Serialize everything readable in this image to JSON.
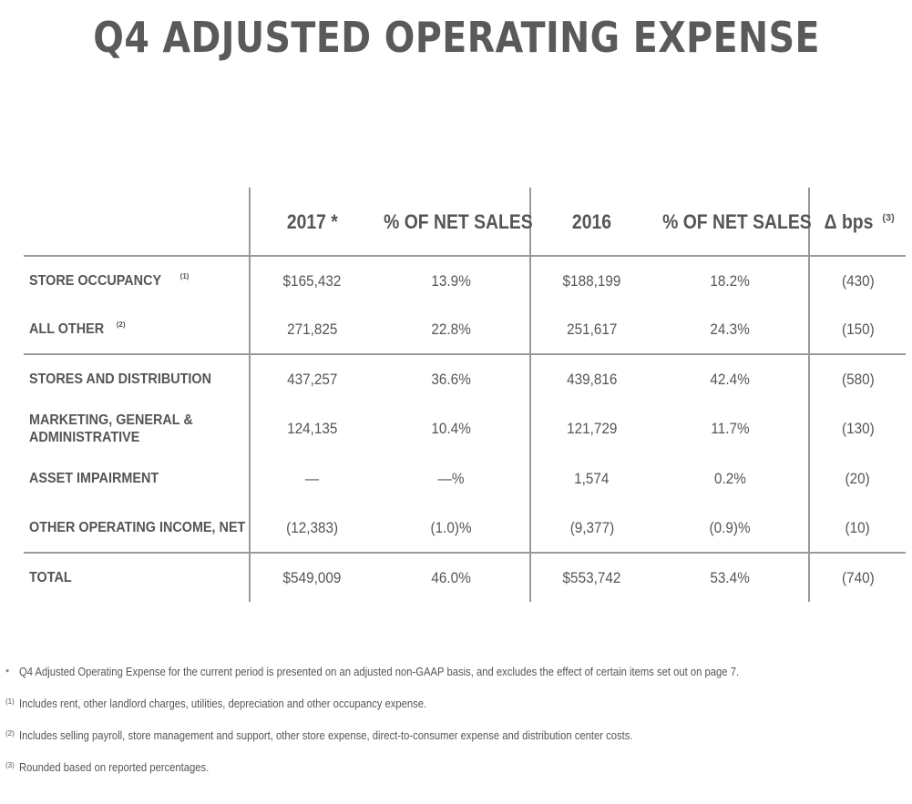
{
  "title": "Q4 ADJUSTED OPERATING EXPENSE",
  "table": {
    "headers": {
      "col1": "2017 *",
      "col2": "% OF NET SALES",
      "col3": "2016",
      "col4": "% OF NET SALES",
      "col5": "Δ bps",
      "col5_sup": "(3)"
    },
    "rows": [
      {
        "label": "STORE OCCUPANCY",
        "sup": "(1)",
        "v2017": "$165,432",
        "p2017": "13.9%",
        "v2016": "$188,199",
        "p2016": "18.2%",
        "bps": "(430)"
      },
      {
        "label": "ALL OTHER",
        "sup": "(2)",
        "v2017": "271,825",
        "p2017": "22.8%",
        "v2016": "251,617",
        "p2016": "24.3%",
        "bps": "(150)"
      },
      {
        "label": "STORES AND DISTRIBUTION",
        "sup": "",
        "v2017": "437,257",
        "p2017": "36.6%",
        "v2016": "439,816",
        "p2016": "42.4%",
        "bps": "(580)"
      },
      {
        "label": "MARKETING, GENERAL & ADMINISTRATIVE",
        "sup": "",
        "v2017": "124,135",
        "p2017": "10.4%",
        "v2016": "121,729",
        "p2016": "11.7%",
        "bps": "(130)"
      },
      {
        "label": "ASSET IMPAIRMENT",
        "sup": "",
        "v2017": "—",
        "p2017": "—%",
        "v2016": "1,574",
        "p2016": "0.2%",
        "bps": "(20)"
      },
      {
        "label": "OTHER OPERATING INCOME, NET",
        "sup": "",
        "v2017": "(12,383)",
        "p2017": "(1.0)%",
        "v2016": "(9,377)",
        "p2016": "(0.9)%",
        "bps": "(10)"
      },
      {
        "label": "TOTAL",
        "sup": "",
        "v2017": "$549,009",
        "p2017": "46.0%",
        "v2016": "$553,742",
        "p2016": "53.4%",
        "bps": "(740)"
      }
    ]
  },
  "footnotes": [
    {
      "mark": "*",
      "text": "Q4 Adjusted Operating Expense for the current period is presented on an adjusted non-GAAP basis, and excludes the effect of certain items set out on page 7."
    },
    {
      "mark": "(1)",
      "text": "Includes rent, other landlord charges, utilities, depreciation and other occupancy expense."
    },
    {
      "mark": "(2)",
      "text": "Includes selling payroll, store management and support, other store expense, direct-to-consumer expense and distribution center costs."
    },
    {
      "mark": "(3)",
      "text": "Rounded based on reported percentages."
    }
  ]
}
